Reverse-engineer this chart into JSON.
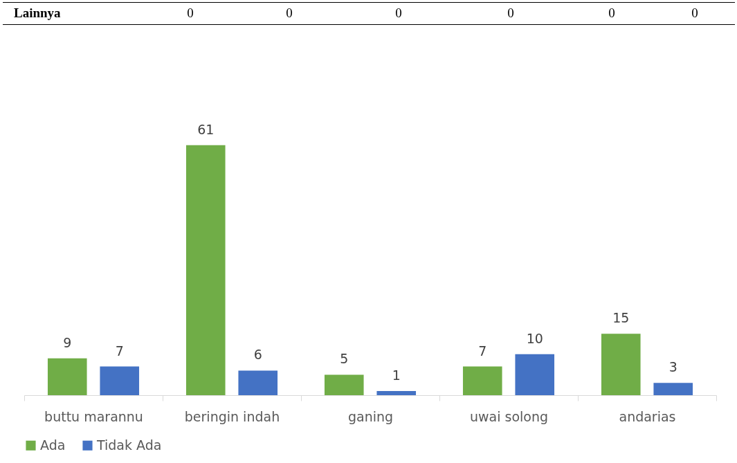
{
  "chart_data": {
    "type": "bar",
    "annotations": [
      "Lainnya",
      "0",
      "0",
      "0",
      "0",
      "0",
      "0"
    ],
    "categories": [
      "buttu marannu",
      "beringin indah",
      "ganing",
      "uwai solong",
      "andarias"
    ],
    "series": [
      {
        "name": "Ada",
        "color": "#70ad47",
        "values": [
          9,
          61,
          5,
          7,
          15
        ]
      },
      {
        "name": "Tidak Ada",
        "color": "#4472c4",
        "values": [
          7,
          6,
          1,
          10,
          3
        ]
      }
    ],
    "data_labels": true,
    "grid": false,
    "legend": "bottom"
  }
}
